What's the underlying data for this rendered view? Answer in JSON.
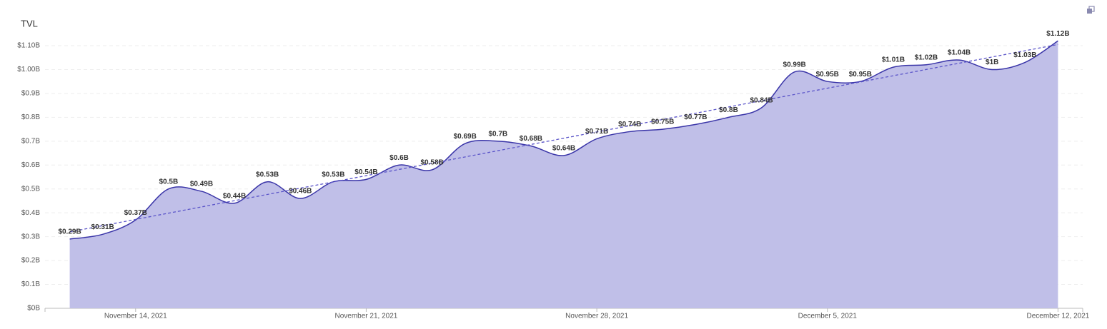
{
  "chart_data": {
    "type": "area",
    "title": "TVL",
    "x": [
      "2021-11-12",
      "2021-11-13",
      "2021-11-14",
      "2021-11-15",
      "2021-11-16",
      "2021-11-17",
      "2021-11-18",
      "2021-11-19",
      "2021-11-20",
      "2021-11-21",
      "2021-11-22",
      "2021-11-23",
      "2021-11-24",
      "2021-11-25",
      "2021-11-26",
      "2021-11-27",
      "2021-11-28",
      "2021-11-29",
      "2021-11-30",
      "2021-12-01",
      "2021-12-02",
      "2021-12-03",
      "2021-12-04",
      "2021-12-05",
      "2021-12-06",
      "2021-12-07",
      "2021-12-08",
      "2021-12-09",
      "2021-12-10",
      "2021-12-11",
      "2021-12-12"
    ],
    "series": [
      {
        "name": "TVL",
        "color": "#3a35a8",
        "fill": "#c0bfe8",
        "values": [
          0.29,
          0.31,
          0.37,
          0.5,
          0.49,
          0.44,
          0.53,
          0.46,
          0.53,
          0.54,
          0.6,
          0.58,
          0.69,
          0.7,
          0.68,
          0.64,
          0.71,
          0.74,
          0.75,
          0.77,
          0.8,
          0.84,
          0.99,
          0.95,
          0.95,
          1.01,
          1.02,
          1.04,
          1,
          1.03,
          1.12
        ],
        "value_labels": [
          "$0.29B",
          "$0.31B",
          "$0.37B",
          "$0.5B",
          "$0.49B",
          "$0.44B",
          "$0.53B",
          "$0.46B",
          "$0.53B",
          "$0.54B",
          "$0.6B",
          "$0.58B",
          "$0.69B",
          "$0.7B",
          "$0.68B",
          "$0.64B",
          "$0.71B",
          "$0.74B",
          "$0.75B",
          "$0.77B",
          "$0.8B",
          "$0.84B",
          "$0.99B",
          "$0.95B",
          "$0.95B",
          "$1.01B",
          "$1.02B",
          "$1.04B",
          "$1B",
          "$1.03B",
          "$1.12B"
        ]
      }
    ],
    "trendline": {
      "start": 0.32,
      "end": 1.105,
      "color": "#5b55c9"
    },
    "xlim": [
      "2021-11-11T06:00:00Z",
      "2021-12-12T18:00:00Z"
    ],
    "xticks": [
      {
        "value": "2021-11-14",
        "label": "November 14, 2021"
      },
      {
        "value": "2021-11-21",
        "label": "November 21, 2021"
      },
      {
        "value": "2021-11-28",
        "label": "November 28, 2021"
      },
      {
        "value": "2021-12-05",
        "label": "December 5, 2021"
      },
      {
        "value": "2021-12-12",
        "label": "December 12, 2021"
      }
    ],
    "ylim": [
      0,
      1.1
    ],
    "yticks": [
      {
        "value": 0,
        "label": "$0B"
      },
      {
        "value": 0.1,
        "label": "$0.1B"
      },
      {
        "value": 0.2,
        "label": "$0.2B"
      },
      {
        "value": 0.3,
        "label": "$0.3B"
      },
      {
        "value": 0.4,
        "label": "$0.4B"
      },
      {
        "value": 0.5,
        "label": "$0.5B"
      },
      {
        "value": 0.6,
        "label": "$0.6B"
      },
      {
        "value": 0.7,
        "label": "$0.7B"
      },
      {
        "value": 0.8,
        "label": "$0.8B"
      },
      {
        "value": 0.9,
        "label": "$0.9B"
      },
      {
        "value": 1.0,
        "label": "$1.00B"
      },
      {
        "value": 1.1,
        "label": "$1.10B"
      }
    ],
    "grid": true
  }
}
